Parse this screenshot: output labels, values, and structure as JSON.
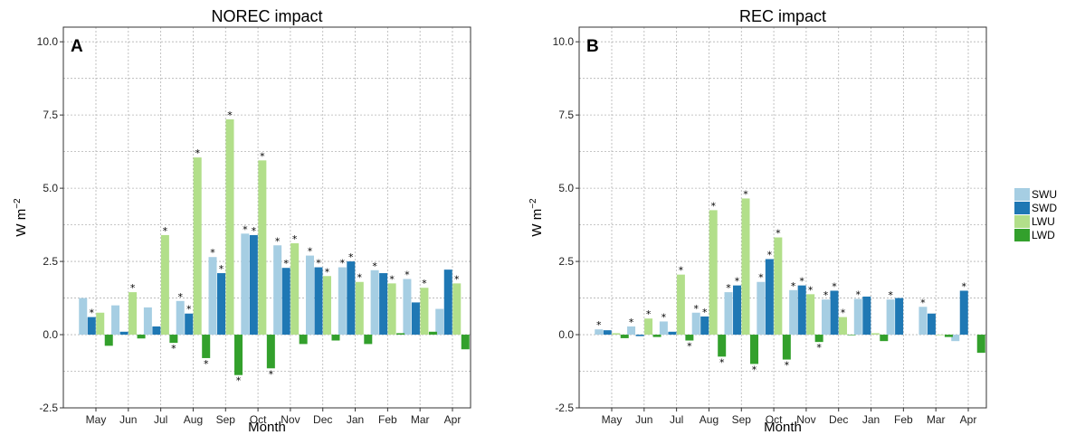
{
  "chart_data": [
    {
      "type": "bar",
      "panel": "A",
      "title": "NOREC impact",
      "xlabel": "Month",
      "ylabel": "W m",
      "ylabel_sup": "−2",
      "ylim": [
        -2.5,
        10.5
      ],
      "yticks": [
        "-2.5",
        "0.0",
        "2.5",
        "5.0",
        "7.5",
        "10.0"
      ],
      "grid": true,
      "categories": [
        "May",
        "Jun",
        "Jul",
        "Aug",
        "Sep",
        "Oct",
        "Nov",
        "Dec",
        "Jan",
        "Feb",
        "Mar",
        "Apr"
      ],
      "series": [
        {
          "name": "SWU",
          "values": [
            1.25,
            1.0,
            0.93,
            1.15,
            2.65,
            3.45,
            3.05,
            2.7,
            2.3,
            2.2,
            1.9,
            0.88
          ],
          "star": [
            false,
            false,
            false,
            true,
            true,
            true,
            true,
            true,
            true,
            true,
            true,
            false
          ]
        },
        {
          "name": "SWD",
          "values": [
            0.6,
            0.1,
            0.28,
            0.72,
            2.1,
            3.4,
            2.28,
            2.3,
            2.5,
            2.1,
            1.1,
            2.22
          ],
          "star": [
            true,
            false,
            false,
            true,
            true,
            true,
            true,
            true,
            true,
            false,
            false,
            false
          ]
        },
        {
          "name": "LWU",
          "values": [
            0.75,
            1.45,
            3.4,
            6.05,
            7.35,
            5.95,
            3.12,
            2.0,
            1.8,
            1.75,
            1.6,
            1.75
          ],
          "star": [
            false,
            true,
            true,
            true,
            true,
            true,
            true,
            true,
            true,
            true,
            true,
            true
          ]
        },
        {
          "name": "LWD",
          "values": [
            -0.38,
            -0.13,
            -0.28,
            -0.8,
            -1.38,
            -1.15,
            -0.32,
            -0.2,
            -0.32,
            0.05,
            0.1,
            -0.5
          ],
          "star": [
            false,
            false,
            true,
            true,
            true,
            true,
            false,
            false,
            false,
            false,
            false,
            false
          ]
        }
      ]
    },
    {
      "type": "bar",
      "panel": "B",
      "title": "REC impact",
      "xlabel": "Month",
      "ylabel": "W m",
      "ylabel_sup": "−2",
      "ylim": [
        -2.5,
        10.5
      ],
      "yticks": [
        "-2.5",
        "0.0",
        "2.5",
        "5.0",
        "7.5",
        "10.0"
      ],
      "grid": true,
      "categories": [
        "May",
        "Jun",
        "Jul",
        "Aug",
        "Sep",
        "Oct",
        "Nov",
        "Dec",
        "Jan",
        "Feb",
        "Mar",
        "Apr"
      ],
      "series": [
        {
          "name": "SWU",
          "values": [
            0.18,
            0.28,
            0.45,
            0.75,
            1.45,
            1.8,
            1.52,
            1.2,
            1.22,
            1.2,
            0.95,
            -0.22
          ],
          "star": [
            true,
            true,
            true,
            true,
            true,
            true,
            true,
            true,
            true,
            true,
            true,
            false
          ]
        },
        {
          "name": "SWD",
          "values": [
            0.15,
            -0.05,
            0.1,
            0.62,
            1.68,
            2.58,
            1.68,
            1.5,
            1.3,
            1.25,
            0.72,
            1.5
          ],
          "star": [
            false,
            false,
            false,
            true,
            true,
            true,
            true,
            true,
            false,
            false,
            false,
            true
          ]
        },
        {
          "name": "LWU",
          "values": [
            0.05,
            0.55,
            2.05,
            4.25,
            4.65,
            3.32,
            1.38,
            0.6,
            0.05,
            0.0,
            -0.02,
            0.0
          ],
          "star": [
            false,
            true,
            true,
            true,
            true,
            true,
            true,
            true,
            false,
            false,
            false,
            false
          ]
        },
        {
          "name": "LWD",
          "values": [
            -0.12,
            -0.08,
            -0.2,
            -0.75,
            -1.0,
            -0.85,
            -0.25,
            -0.02,
            -0.22,
            0.0,
            -0.08,
            -0.62
          ],
          "star": [
            false,
            false,
            true,
            true,
            true,
            true,
            true,
            false,
            false,
            false,
            false,
            false
          ]
        }
      ]
    }
  ],
  "legend": {
    "entries": [
      "SWU",
      "SWD",
      "LWU",
      "LWD"
    ],
    "colors": [
      "#a6cee3",
      "#1f78b4",
      "#b2df8a",
      "#33a02c"
    ],
    "placement": "right"
  },
  "colors": {
    "SWU": "#a6cee3",
    "SWD": "#1f78b4",
    "LWU": "#b2df8a",
    "LWD": "#33a02c",
    "grid": "#b3b3b3"
  },
  "significance_marker": "*"
}
